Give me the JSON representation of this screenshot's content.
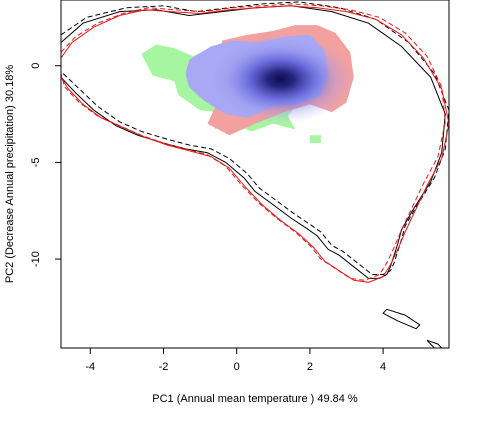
{
  "chart_data": {
    "type": "scatter",
    "title": "",
    "xlabel": "PC1 (Annual mean temperature ) 49.84 %",
    "ylabel": "PC2 (Decrease Annual precipitation) 30.18%",
    "xlim": [
      -4.8,
      5.8
    ],
    "ylim": [
      -14.6,
      3.4
    ],
    "xticks": [
      -4,
      -2,
      0,
      2,
      4
    ],
    "yticks": [
      0,
      -5,
      -10
    ],
    "xtick_labels": [
      "-4",
      "-2",
      "0",
      "2",
      "4"
    ],
    "ytick_labels": [
      "0",
      "-5",
      "-10"
    ],
    "grid": false,
    "legend": "none",
    "colors": {
      "contour_a": "#000000",
      "contour_b": "#e31a1c",
      "only_a": "#a6f5a0",
      "only_b": "#f2a0a0",
      "overlap_light": "#a8a8f5",
      "overlap_dark": "#0d0d4a"
    },
    "density_peak": [
      1.2,
      -0.7
    ],
    "series": [
      {
        "style": "solid-black",
        "x": [
          -4.8,
          -4.2,
          -3.2,
          -2.2,
          -1.3,
          -0.4,
          0.5,
          1.5,
          2.6,
          3.6,
          4.5,
          5.3,
          5.7,
          5.6,
          5.3,
          4.8,
          4.5,
          4.4,
          4.3,
          4.2,
          4.1,
          3.9,
          3.6,
          3.2,
          2.8,
          2.5,
          2.2,
          1.9,
          1.5,
          1.0,
          0.5,
          0.2,
          -0.3,
          -0.8,
          -1.4,
          -2.0,
          -2.7,
          -3.3,
          -3.9,
          -4.4,
          -4.8
        ],
        "y": [
          1.2,
          2.2,
          2.8,
          2.9,
          2.6,
          2.8,
          3.0,
          3.1,
          2.8,
          2.2,
          1.0,
          -0.6,
          -2.5,
          -4.5,
          -6.0,
          -7.5,
          -8.5,
          -9.2,
          -9.8,
          -10.4,
          -10.8,
          -11.0,
          -11.0,
          -10.4,
          -9.8,
          -9.5,
          -8.8,
          -8.4,
          -7.9,
          -7.2,
          -6.5,
          -5.8,
          -5.0,
          -4.5,
          -4.3,
          -4.0,
          -3.6,
          -3.1,
          -2.3,
          -1.4,
          -0.6
        ]
      },
      {
        "style": "dashed-black",
        "x": [
          -4.8,
          -4.1,
          -3.0,
          -2.0,
          -1.1,
          -0.2,
          0.7,
          1.7,
          2.8,
          3.8,
          4.7,
          5.4,
          5.8,
          5.7,
          5.4,
          4.9,
          4.6,
          4.5,
          4.4,
          4.3,
          4.2,
          4.0,
          3.7,
          3.3,
          2.9,
          2.6,
          2.3,
          2.0,
          1.6,
          1.1,
          0.6,
          0.3,
          -0.2,
          -0.7,
          -1.3,
          -1.9,
          -2.6,
          -3.2,
          -3.8,
          -4.3,
          -4.8
        ],
        "y": [
          1.6,
          2.5,
          3.0,
          3.1,
          2.8,
          3.0,
          3.2,
          3.3,
          3.0,
          2.4,
          1.2,
          -0.4,
          -2.3,
          -4.3,
          -5.8,
          -7.3,
          -8.3,
          -9.0,
          -9.6,
          -10.2,
          -10.6,
          -10.8,
          -10.8,
          -10.2,
          -9.6,
          -9.3,
          -8.6,
          -8.2,
          -7.7,
          -7.0,
          -6.3,
          -5.6,
          -4.8,
          -4.3,
          -4.1,
          -3.8,
          -3.4,
          -2.9,
          -2.1,
          -1.2,
          -0.3
        ]
      },
      {
        "style": "solid-red",
        "x": [
          -4.8,
          -4.5,
          -3.9,
          -3.2,
          -2.5,
          -1.8,
          -1.0,
          -0.2,
          0.6,
          1.4,
          2.2,
          3.0,
          3.8,
          4.5,
          5.1,
          5.6,
          5.8,
          5.6,
          5.2,
          4.9,
          4.6,
          4.4,
          4.2,
          4.0,
          3.6,
          3.2,
          2.8,
          2.4,
          2.1,
          1.7,
          1.2,
          0.7,
          0.2,
          -0.2,
          -0.7,
          -1.3,
          -1.9,
          -2.5,
          -3.1,
          -3.7,
          -4.2,
          -4.6,
          -4.8
        ],
        "y": [
          0.4,
          1.2,
          2.0,
          2.6,
          2.9,
          2.8,
          2.7,
          2.9,
          3.0,
          3.1,
          3.0,
          2.8,
          2.4,
          1.6,
          0.4,
          -1.2,
          -3.0,
          -4.8,
          -6.2,
          -7.4,
          -8.6,
          -9.5,
          -10.3,
          -10.9,
          -11.2,
          -11.1,
          -10.6,
          -10.1,
          -9.4,
          -8.7,
          -8.0,
          -7.2,
          -6.2,
          -5.3,
          -4.7,
          -4.4,
          -4.1,
          -3.7,
          -3.2,
          -2.7,
          -2.0,
          -1.2,
          -0.6
        ]
      },
      {
        "style": "dashed-red",
        "x": [
          -4.8,
          -4.4,
          -3.8,
          -3.1,
          -2.4,
          -1.7,
          -0.9,
          -0.1,
          0.7,
          1.5,
          2.3,
          3.1,
          3.9,
          4.6,
          5.2,
          5.6,
          5.7,
          5.5,
          5.1,
          4.8,
          4.5,
          4.3,
          4.1,
          3.9,
          3.5,
          3.1,
          2.7,
          2.3,
          2.0,
          1.6,
          1.1,
          0.6,
          0.1,
          -0.3,
          -0.8,
          -1.4,
          -2.0,
          -2.6,
          -3.2,
          -3.8,
          -4.3,
          -4.7,
          -4.8
        ],
        "y": [
          0.7,
          1.5,
          2.2,
          2.7,
          3.0,
          2.9,
          2.8,
          3.0,
          3.1,
          3.2,
          3.1,
          2.9,
          2.5,
          1.7,
          0.5,
          -1.1,
          -2.9,
          -4.7,
          -6.1,
          -7.3,
          -8.5,
          -9.4,
          -10.2,
          -10.8,
          -11.1,
          -11.0,
          -10.5,
          -10.0,
          -9.3,
          -8.6,
          -7.9,
          -7.1,
          -6.1,
          -5.2,
          -4.6,
          -4.3,
          -4.0,
          -3.6,
          -3.1,
          -2.6,
          -1.9,
          -1.1,
          -0.4
        ]
      },
      {
        "style": "solid-black",
        "x": [
          4.1,
          4.6,
          5.0,
          4.9,
          4.4,
          4.0,
          4.1
        ],
        "y": [
          -12.6,
          -12.9,
          -13.4,
          -13.6,
          -13.2,
          -12.8,
          -12.6
        ]
      },
      {
        "style": "solid-black",
        "x": [
          5.2,
          5.5,
          5.6,
          5.4,
          5.2
        ],
        "y": [
          -14.2,
          -14.4,
          -14.6,
          -14.6,
          -14.2
        ]
      }
    ],
    "regions": [
      {
        "type": "only_a",
        "x": [
          -2.6,
          -2.2,
          -1.7,
          -1.2,
          -0.4,
          0.1,
          0.7,
          1.2,
          1.7,
          1.9,
          1.6,
          1.8,
          1.4,
          1.6,
          1.0,
          0.4,
          -0.2,
          -0.6,
          -0.5,
          -1.0,
          -1.6,
          -1.7,
          -2.3,
          -2.6
        ],
        "y": [
          0.6,
          1.1,
          0.9,
          0.5,
          1.2,
          1.5,
          1.3,
          1.6,
          0.8,
          0.0,
          -0.8,
          -1.6,
          -2.6,
          -3.3,
          -3.0,
          -3.4,
          -2.9,
          -3.3,
          -2.4,
          -2.3,
          -1.5,
          -0.8,
          -0.5,
          0.6
        ]
      },
      {
        "type": "only_b",
        "x": [
          -0.4,
          0.3,
          1.0,
          1.6,
          2.2,
          2.7,
          3.1,
          3.2,
          3.0,
          2.6,
          2.0,
          1.3,
          0.5,
          -0.2,
          -0.8,
          -0.5,
          -0.4
        ],
        "y": [
          1.3,
          1.6,
          1.8,
          2.1,
          2.1,
          1.7,
          0.7,
          -0.6,
          -1.9,
          -2.4,
          -2.0,
          -2.4,
          -3.0,
          -3.6,
          -3.0,
          -1.8,
          1.3
        ]
      },
      {
        "type": "overlap_light",
        "x": [
          -1.3,
          -0.7,
          -0.1,
          0.6,
          1.3,
          2.0,
          2.4,
          2.5,
          2.3,
          1.7,
          1.0,
          0.3,
          -0.3,
          -0.9,
          -1.3,
          -1.4,
          -1.3
        ],
        "y": [
          0.3,
          1.0,
          1.3,
          1.2,
          1.5,
          1.6,
          0.8,
          -0.5,
          -1.5,
          -2.0,
          -2.1,
          -2.7,
          -2.5,
          -1.8,
          -1.1,
          -0.4,
          0.3
        ]
      },
      {
        "type": "only_a",
        "x": [
          2.0,
          2.3,
          2.3,
          2.0,
          2.0
        ],
        "y": [
          -3.6,
          -3.6,
          -4.0,
          -4.0,
          -3.6
        ]
      }
    ]
  }
}
